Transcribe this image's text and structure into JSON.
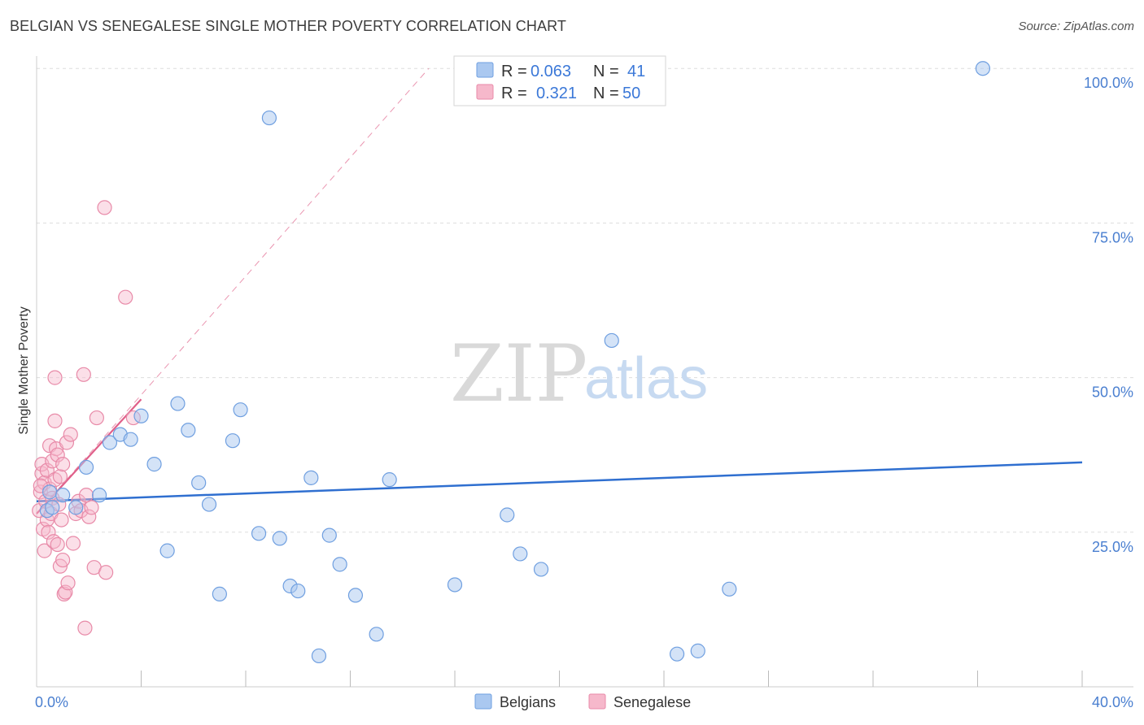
{
  "title": "BELGIAN VS SENEGALESE SINGLE MOTHER POVERTY CORRELATION CHART",
  "source": "Source: ZipAtlas.com",
  "watermark": {
    "zip": "ZIP",
    "atlas": "atlas"
  },
  "colors": {
    "belgian_fill": "#aac8f0",
    "belgian_stroke": "#6f9fe0",
    "belgian_line": "#2f6fd0",
    "senegalese_fill": "#f6b8cb",
    "senegalese_stroke": "#e88aa8",
    "senegalese_line": "#e0608a",
    "grid": "#dddddd",
    "tick_label": "#4a7fd0"
  },
  "legend": {
    "r_label": "R =",
    "n_label": "N =",
    "rows": [
      {
        "series": "Belgians",
        "r": "0.063",
        "n": "41"
      },
      {
        "series": "Senegalese",
        "r": "0.321",
        "n": "50"
      }
    ]
  },
  "chart_data": {
    "type": "scatter",
    "title": "BELGIAN VS SENEGALESE SINGLE MOTHER POVERTY CORRELATION CHART",
    "xlabel": "",
    "ylabel": "Single Mother Poverty",
    "xlim": [
      0,
      40
    ],
    "ylim": [
      0,
      102
    ],
    "x_tick_labels": [
      {
        "value": 0,
        "label": "0.0%"
      },
      {
        "value": 40,
        "label": "40.0%"
      }
    ],
    "y_tick_labels": [
      {
        "value": 25,
        "label": "25.0%"
      },
      {
        "value": 50,
        "label": "50.0%"
      },
      {
        "value": 75,
        "label": "75.0%"
      },
      {
        "value": 100,
        "label": "100.0%"
      }
    ],
    "grid": true,
    "legend_position": "top-center",
    "series": [
      {
        "name": "Belgians",
        "r": 0.063,
        "n": 41,
        "trend": {
          "x": [
            0,
            40
          ],
          "y": [
            30.0,
            36.3
          ]
        },
        "points": [
          [
            0.4,
            28.5
          ],
          [
            0.5,
            31.5
          ],
          [
            0.6,
            29.0
          ],
          [
            1.0,
            31.0
          ],
          [
            1.5,
            29.0
          ],
          [
            1.9,
            35.5
          ],
          [
            2.4,
            31.0
          ],
          [
            2.8,
            39.5
          ],
          [
            3.2,
            40.8
          ],
          [
            3.6,
            40.0
          ],
          [
            4.0,
            43.8
          ],
          [
            4.5,
            36.0
          ],
          [
            5.0,
            22.0
          ],
          [
            5.4,
            45.8
          ],
          [
            5.8,
            41.5
          ],
          [
            6.2,
            33.0
          ],
          [
            6.6,
            29.5
          ],
          [
            7.0,
            15.0
          ],
          [
            7.5,
            39.8
          ],
          [
            7.8,
            44.8
          ],
          [
            8.5,
            24.8
          ],
          [
            8.9,
            92.0
          ],
          [
            9.3,
            24.0
          ],
          [
            9.7,
            16.3
          ],
          [
            10.0,
            15.5
          ],
          [
            10.5,
            33.8
          ],
          [
            10.8,
            5.0
          ],
          [
            11.2,
            24.5
          ],
          [
            11.6,
            19.8
          ],
          [
            12.2,
            14.8
          ],
          [
            13.0,
            8.5
          ],
          [
            13.5,
            33.5
          ],
          [
            16.0,
            16.5
          ],
          [
            18.0,
            27.8
          ],
          [
            18.5,
            21.5
          ],
          [
            19.3,
            19.0
          ],
          [
            22.0,
            56.0
          ],
          [
            24.5,
            5.3
          ],
          [
            25.3,
            5.8
          ],
          [
            26.5,
            15.8
          ],
          [
            36.2,
            100.0
          ]
        ]
      },
      {
        "name": "Senegalese",
        "r": 0.321,
        "n": 50,
        "trend": {
          "x": [
            0,
            4.0
          ],
          "y": [
            28.0,
            46.5
          ]
        },
        "trend_extended": {
          "x": [
            0,
            15.0
          ],
          "y": [
            28.0,
            100.0
          ]
        },
        "points": [
          [
            0.1,
            28.5
          ],
          [
            0.15,
            31.5
          ],
          [
            0.2,
            34.5
          ],
          [
            0.2,
            36.0
          ],
          [
            0.25,
            25.5
          ],
          [
            0.3,
            22.0
          ],
          [
            0.3,
            33.0
          ],
          [
            0.35,
            30.0
          ],
          [
            0.4,
            27.0
          ],
          [
            0.4,
            35.0
          ],
          [
            0.45,
            25.0
          ],
          [
            0.5,
            32.0
          ],
          [
            0.5,
            39.0
          ],
          [
            0.55,
            28.0
          ],
          [
            0.6,
            36.5
          ],
          [
            0.6,
            30.5
          ],
          [
            0.65,
            23.5
          ],
          [
            0.7,
            43.0
          ],
          [
            0.7,
            50.0
          ],
          [
            0.7,
            33.5
          ],
          [
            0.75,
            38.5
          ],
          [
            0.8,
            23.0
          ],
          [
            0.8,
            37.5
          ],
          [
            0.85,
            29.5
          ],
          [
            0.9,
            34.0
          ],
          [
            0.9,
            19.5
          ],
          [
            0.95,
            27.0
          ],
          [
            1.0,
            20.5
          ],
          [
            1.0,
            36.0
          ],
          [
            1.05,
            15.0
          ],
          [
            1.1,
            15.3
          ],
          [
            1.15,
            39.5
          ],
          [
            1.2,
            16.8
          ],
          [
            1.3,
            40.8
          ],
          [
            1.4,
            23.2
          ],
          [
            1.5,
            28.0
          ],
          [
            1.6,
            30.0
          ],
          [
            1.7,
            28.5
          ],
          [
            1.8,
            50.5
          ],
          [
            1.85,
            9.5
          ],
          [
            1.9,
            31.0
          ],
          [
            2.0,
            27.5
          ],
          [
            2.1,
            29.0
          ],
          [
            2.2,
            19.3
          ],
          [
            2.3,
            43.5
          ],
          [
            2.6,
            77.5
          ],
          [
            2.65,
            18.5
          ],
          [
            3.4,
            63.0
          ],
          [
            3.7,
            43.5
          ],
          [
            0.15,
            32.5
          ]
        ]
      }
    ]
  }
}
